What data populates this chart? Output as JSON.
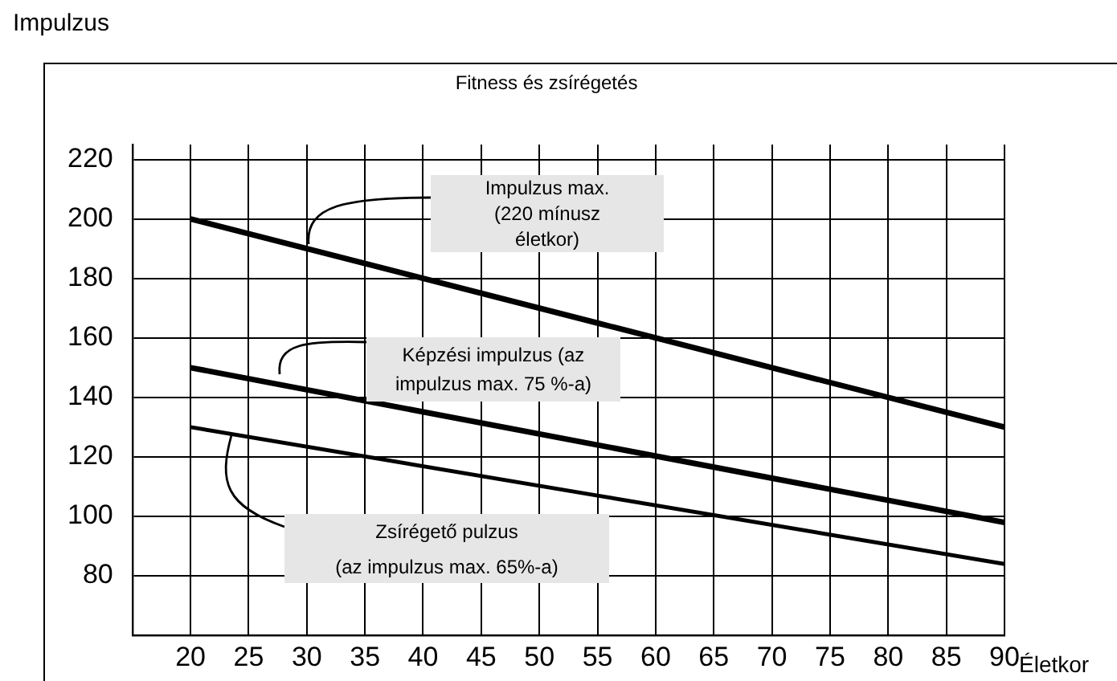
{
  "chart_data": {
    "type": "line",
    "title": "Fitness és zsírégetés",
    "ylabel": "Impulzus",
    "xlabel": "Életkor",
    "x": [
      20,
      55,
      90
    ],
    "series": [
      {
        "color": "#000000",
        "values": [
          200,
          165,
          130
        ]
      },
      {
        "color": "#000000",
        "values": [
          150,
          124,
          98
        ]
      },
      {
        "color": "#000000",
        "values": [
          130,
          107,
          84
        ]
      }
    ],
    "xlim": [
      15,
      90
    ],
    "xticks": [
      20,
      25,
      30,
      35,
      40,
      45,
      50,
      55,
      60,
      65,
      70,
      75,
      80,
      85,
      90
    ],
    "ylim": [
      60,
      225
    ],
    "yticks": [
      {
        "value": 60,
        "label": null
      },
      80,
      100,
      120,
      140,
      160,
      180,
      200,
      220
    ],
    "grid": true,
    "legend": false,
    "annotations": [
      "Impulzus max.\n(220 mínusz\néletkor)",
      "Képzési impulzus  (az\nimpulzus max.  75 %-a)",
      "Zsírégető pulzus\n(az impulzus max. 65%-a)"
    ]
  }
}
